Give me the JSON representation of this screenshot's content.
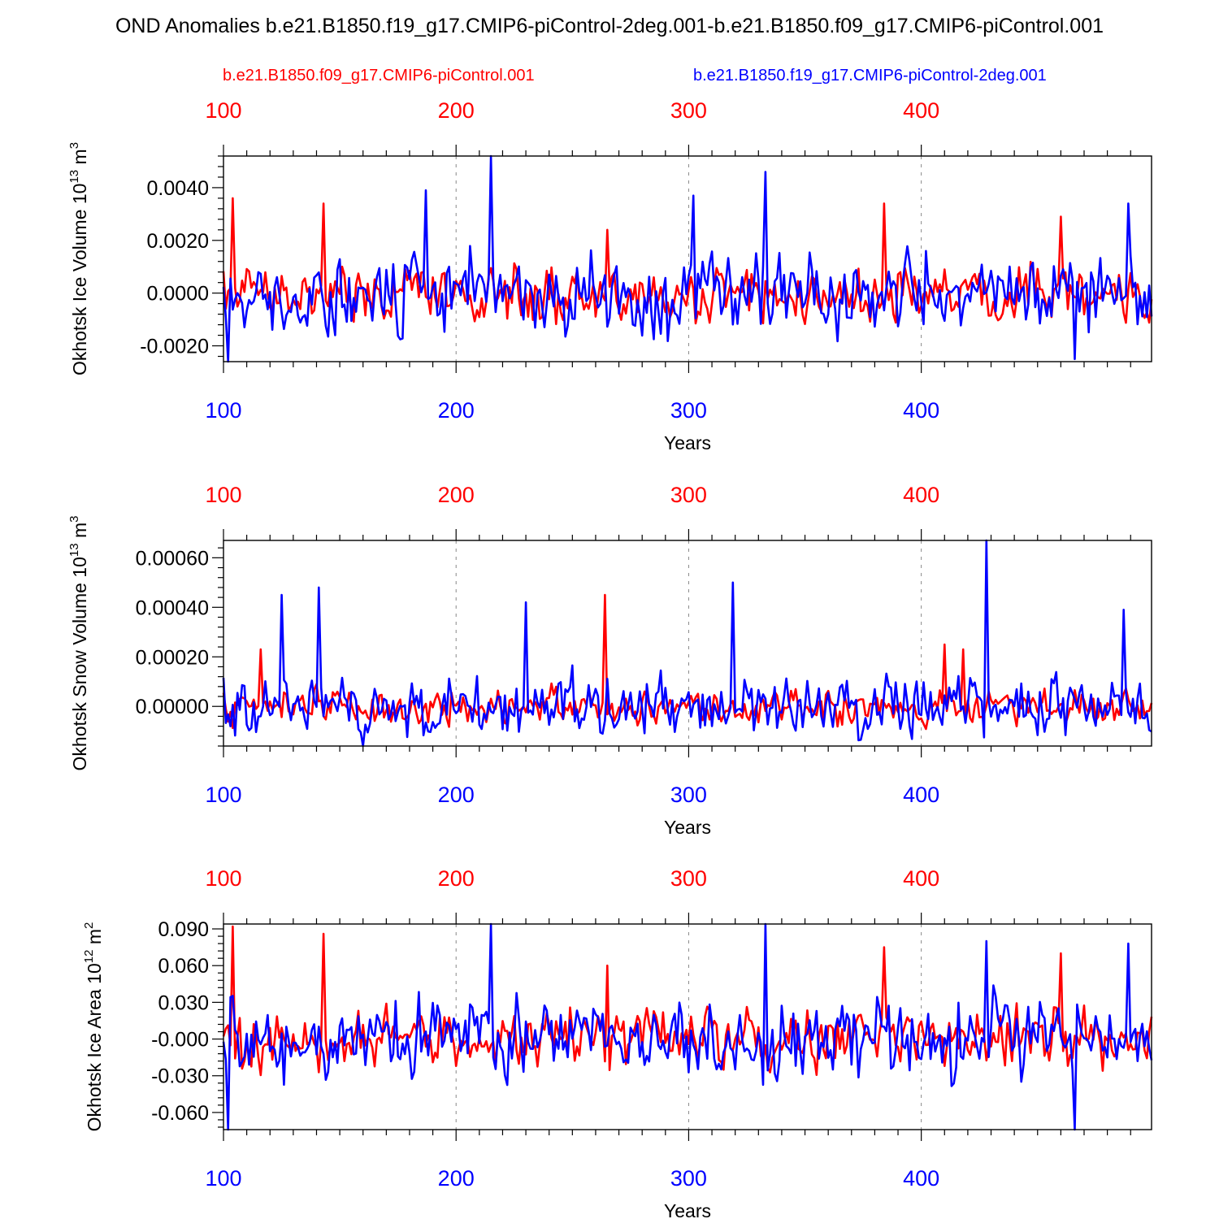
{
  "figure": {
    "title": "OND Anomalies b.e21.B1850.f19_g17.CMIP6-piControl-2deg.001-b.e21.B1850.f09_g17.CMIP6-piControl.001",
    "legend": {
      "red": "b.e21.B1850.f09_g17.CMIP6-piControl.001",
      "blue": "b.e21.B1850.f19_g17.CMIP6-piControl-2deg.001"
    },
    "colors": {
      "red": "#ff0000",
      "blue": "#0000ff",
      "frame": "#000000",
      "grid": "#888888"
    }
  },
  "chart_data": [
    {
      "type": "line",
      "title": "",
      "ylabel": {
        "main": "Okhotsk Ice Volume 10",
        "exp": "13",
        "unit": " m",
        "unit_exp": "3"
      },
      "xlabel": "Years",
      "xlim": [
        100,
        499
      ],
      "ylim": [
        -0.0026,
        0.0052
      ],
      "yticks": [
        -0.002,
        0.0,
        0.002,
        0.004
      ],
      "ytick_labels": [
        "-0.0020",
        "0.0000",
        "0.0020",
        "0.0040"
      ],
      "xticks": [
        100,
        200,
        300,
        400
      ],
      "xtick_labels": [
        "100",
        "200",
        "300",
        "400"
      ],
      "grid_x": [
        200,
        300,
        400
      ],
      "series": [
        {
          "name": "b.e21.B1850.f09_g17.CMIP6-piControl.001",
          "color": "#ff0000",
          "amp": 0.0008,
          "mean": -0.0001,
          "min": -0.0015,
          "max": 0.0036,
          "seed": 11,
          "peaks": [
            [
              104,
              0.0036
            ],
            [
              143,
              0.0034
            ],
            [
              265,
              0.0024
            ],
            [
              384,
              0.0034
            ],
            [
              460,
              0.0029
            ]
          ]
        },
        {
          "name": "b.e21.B1850.f19_g17.CMIP6-piControl-2deg.001",
          "color": "#0000ff",
          "amp": 0.0011,
          "mean": 0.0,
          "min": -0.0026,
          "max": 0.0052,
          "seed": 23,
          "peaks": [
            [
              102,
              -0.0026
            ],
            [
              187,
              0.0039
            ],
            [
              215,
              0.0052
            ],
            [
              302,
              0.0037
            ],
            [
              333,
              0.0046
            ],
            [
              466,
              -0.0025
            ],
            [
              489,
              0.0034
            ]
          ]
        }
      ]
    },
    {
      "type": "line",
      "title": "",
      "ylabel": {
        "main": "Okhotsk Snow Volume 10",
        "exp": "13",
        "unit": " m",
        "unit_exp": "3"
      },
      "xlabel": "Years",
      "xlim": [
        100,
        499
      ],
      "ylim": [
        -0.00016,
        0.00067
      ],
      "yticks": [
        0.0,
        0.0002,
        0.0004,
        0.0006
      ],
      "ytick_labels": [
        "0.00000",
        "0.00020",
        "0.00040",
        "0.00060"
      ],
      "xticks": [
        100,
        200,
        300,
        400
      ],
      "xtick_labels": [
        "100",
        "200",
        "300",
        "400"
      ],
      "grid_x": [
        200,
        300,
        400
      ],
      "series": [
        {
          "name": "b.e21.B1850.f09_g17.CMIP6-piControl.001",
          "color": "#ff0000",
          "amp": 5e-05,
          "mean": 0.0,
          "min": -0.0001,
          "max": 0.00045,
          "seed": 37,
          "peaks": [
            [
              116,
              0.00023
            ],
            [
              264,
              0.00045
            ],
            [
              410,
              0.00025
            ],
            [
              418,
              0.00023
            ]
          ]
        },
        {
          "name": "b.e21.B1850.f19_g17.CMIP6-piControl-2deg.001",
          "color": "#0000ff",
          "amp": 9e-05,
          "mean": 0.0,
          "min": -0.00016,
          "max": 0.00067,
          "seed": 41,
          "peaks": [
            [
              125,
              0.00045
            ],
            [
              141,
              0.00048
            ],
            [
              230,
              0.00042
            ],
            [
              319,
              0.0005
            ],
            [
              428,
              0.00067
            ],
            [
              487,
              0.00039
            ]
          ]
        }
      ]
    },
    {
      "type": "line",
      "title": "",
      "ylabel": {
        "main": "Okhotsk Ice Area 10",
        "exp": "12",
        "unit": " m",
        "unit_exp": "2"
      },
      "xlabel": "Years",
      "xlim": [
        100,
        499
      ],
      "ylim": [
        -0.074,
        0.094
      ],
      "yticks": [
        -0.06,
        -0.03,
        0.0,
        0.03,
        0.06,
        0.09
      ],
      "ytick_labels": [
        "-0.060",
        "-0.030",
        "-0.000",
        "0.030",
        "0.060",
        "0.090"
      ],
      "xticks": [
        100,
        200,
        300,
        400
      ],
      "xtick_labels": [
        "100",
        "200",
        "300",
        "400"
      ],
      "grid_x": [
        200,
        300,
        400
      ],
      "series": [
        {
          "name": "b.e21.B1850.f09_g17.CMIP6-piControl.001",
          "color": "#ff0000",
          "amp": 0.018,
          "mean": 0.0,
          "min": -0.048,
          "max": 0.092,
          "seed": 53,
          "peaks": [
            [
              104,
              0.092
            ],
            [
              143,
              0.086
            ],
            [
              265,
              0.06
            ],
            [
              384,
              0.075
            ],
            [
              460,
              0.07
            ]
          ]
        },
        {
          "name": "b.e21.B1850.f19_g17.CMIP6-piControl-2deg.001",
          "color": "#0000ff",
          "amp": 0.024,
          "mean": 0.0,
          "min": -0.074,
          "max": 0.094,
          "seed": 67,
          "peaks": [
            [
              102,
              -0.074
            ],
            [
              215,
              0.094
            ],
            [
              333,
              0.094
            ],
            [
              428,
              0.08
            ],
            [
              466,
              -0.074
            ],
            [
              489,
              0.078
            ]
          ]
        }
      ]
    }
  ]
}
